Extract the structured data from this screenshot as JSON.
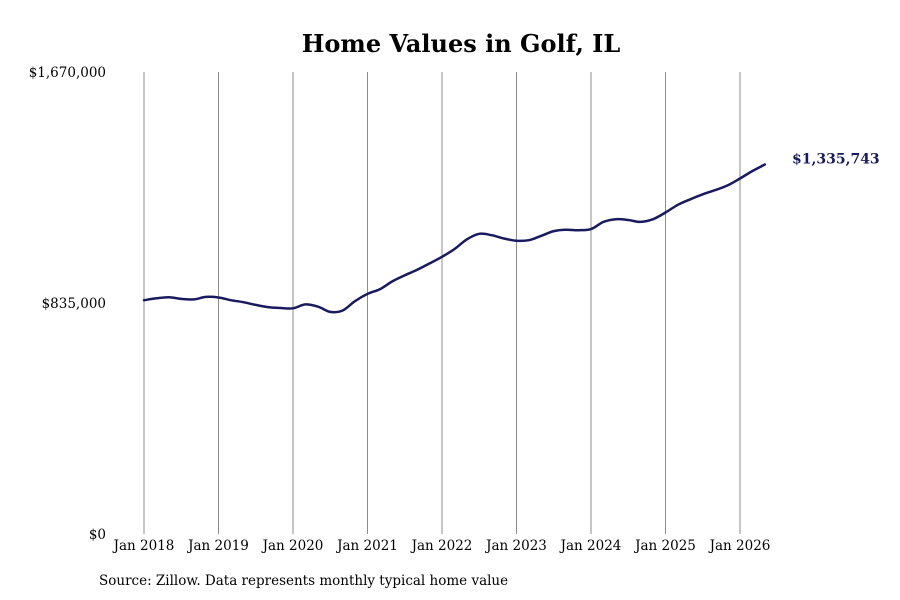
{
  "chart_data": {
    "type": "line",
    "title": "Home Values in Golf, IL",
    "xlabel": "",
    "ylabel": "",
    "x_range": [
      "2018-01",
      "2026-07"
    ],
    "ylim": [
      0,
      1670000
    ],
    "y_ticks": [
      {
        "value": 0,
        "label": "$0"
      },
      {
        "value": 835000,
        "label": "$835,000"
      },
      {
        "value": 1670000,
        "label": "$1,670,000"
      }
    ],
    "x_ticks": [
      {
        "date": "2018-01",
        "label": "Jan 2018"
      },
      {
        "date": "2019-01",
        "label": "Jan 2019"
      },
      {
        "date": "2020-01",
        "label": "Jan 2020"
      },
      {
        "date": "2021-01",
        "label": "Jan 2021"
      },
      {
        "date": "2022-01",
        "label": "Jan 2022"
      },
      {
        "date": "2023-01",
        "label": "Jan 2023"
      },
      {
        "date": "2024-01",
        "label": "Jan 2024"
      },
      {
        "date": "2025-01",
        "label": "Jan 2025"
      },
      {
        "date": "2026-01",
        "label": "Jan 2026"
      }
    ],
    "grid": "vertical",
    "legend": "none",
    "line_color": "#1a1a5e",
    "end_label": "$1,335,743",
    "series": [
      {
        "points": [
          [
            "2018-01",
            845000
          ],
          [
            "2018-03",
            852000
          ],
          [
            "2018-05",
            856000
          ],
          [
            "2018-07",
            850000
          ],
          [
            "2018-09",
            848000
          ],
          [
            "2018-11",
            857000
          ],
          [
            "2019-01",
            855000
          ],
          [
            "2019-03",
            845000
          ],
          [
            "2019-05",
            838000
          ],
          [
            "2019-07",
            828000
          ],
          [
            "2019-09",
            820000
          ],
          [
            "2019-11",
            817000
          ],
          [
            "2020-01",
            816000
          ],
          [
            "2020-03",
            830000
          ],
          [
            "2020-05",
            822000
          ],
          [
            "2020-07",
            803000
          ],
          [
            "2020-09",
            808000
          ],
          [
            "2020-11",
            842000
          ],
          [
            "2021-01",
            868000
          ],
          [
            "2021-03",
            885000
          ],
          [
            "2021-05",
            913000
          ],
          [
            "2021-07",
            935000
          ],
          [
            "2021-09",
            955000
          ],
          [
            "2021-11",
            978000
          ],
          [
            "2022-01",
            1002000
          ],
          [
            "2022-03",
            1030000
          ],
          [
            "2022-05",
            1065000
          ],
          [
            "2022-07",
            1085000
          ],
          [
            "2022-09",
            1080000
          ],
          [
            "2022-11",
            1068000
          ],
          [
            "2023-01",
            1060000
          ],
          [
            "2023-03",
            1062000
          ],
          [
            "2023-05",
            1078000
          ],
          [
            "2023-07",
            1095000
          ],
          [
            "2023-09",
            1100000
          ],
          [
            "2023-11",
            1098000
          ],
          [
            "2024-01",
            1102000
          ],
          [
            "2024-03",
            1128000
          ],
          [
            "2024-05",
            1138000
          ],
          [
            "2024-07",
            1135000
          ],
          [
            "2024-09",
            1128000
          ],
          [
            "2024-11",
            1138000
          ],
          [
            "2025-01",
            1162000
          ],
          [
            "2025-03",
            1190000
          ],
          [
            "2025-05",
            1210000
          ],
          [
            "2025-07",
            1228000
          ],
          [
            "2025-09",
            1243000
          ],
          [
            "2025-11",
            1260000
          ],
          [
            "2026-01",
            1285000
          ],
          [
            "2026-03",
            1312000
          ],
          [
            "2026-05",
            1335743
          ]
        ]
      }
    ]
  },
  "footer": {
    "source": "Source: Zillow. Data represents monthly typical home value"
  }
}
